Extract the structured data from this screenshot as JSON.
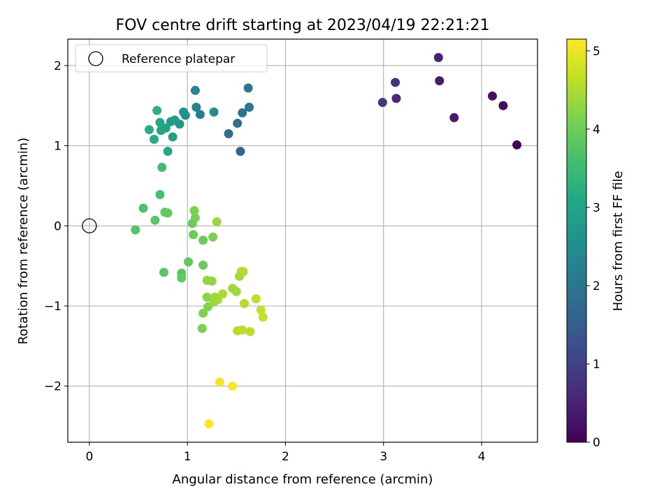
{
  "chart_data": {
    "type": "scatter",
    "title": "FOV centre drift starting at 2023/04/19 22:21:21",
    "xlabel": "Angular distance from reference (arcmin)",
    "ylabel": "Rotation from reference (arcmin)",
    "xlim": [
      -0.22,
      4.57
    ],
    "ylim": [
      -2.7,
      2.33
    ],
    "xticks": [
      0,
      1,
      2,
      3,
      4
    ],
    "xtick_labels": [
      "0",
      "1",
      "2",
      "3",
      "4"
    ],
    "yticks": [
      -2,
      -1,
      0,
      1,
      2
    ],
    "ytick_labels": [
      "−2",
      "−1",
      "0",
      "1",
      "2"
    ],
    "grid": true,
    "legend": {
      "placement": "top-left",
      "entries": [
        "Reference platepar"
      ]
    },
    "reference_point": {
      "x": 0,
      "y": 0
    },
    "colorbar": {
      "label": "Hours from first FF file",
      "range": [
        0,
        5.15
      ],
      "ticks": [
        0,
        1,
        2,
        3,
        4,
        5
      ],
      "tick_labels": [
        "0",
        "1",
        "2",
        "3",
        "4",
        "5"
      ],
      "colormap": "viridis"
    },
    "points": [
      {
        "x": 4.36,
        "y": 1.01,
        "c": 0.05
      },
      {
        "x": 4.22,
        "y": 1.5,
        "c": 0.15
      },
      {
        "x": 4.11,
        "y": 1.62,
        "c": 0.22
      },
      {
        "x": 3.72,
        "y": 1.35,
        "c": 0.35
      },
      {
        "x": 3.57,
        "y": 1.81,
        "c": 0.42
      },
      {
        "x": 3.56,
        "y": 2.1,
        "c": 0.5
      },
      {
        "x": 3.13,
        "y": 1.59,
        "c": 0.65
      },
      {
        "x": 3.12,
        "y": 1.79,
        "c": 0.75
      },
      {
        "x": 2.99,
        "y": 1.54,
        "c": 0.85
      },
      {
        "x": 1.54,
        "y": 0.93,
        "c": 1.7
      },
      {
        "x": 1.42,
        "y": 1.15,
        "c": 1.9
      },
      {
        "x": 1.51,
        "y": 1.28,
        "c": 1.85
      },
      {
        "x": 1.56,
        "y": 1.41,
        "c": 1.95
      },
      {
        "x": 1.62,
        "y": 1.72,
        "c": 2.0
      },
      {
        "x": 1.63,
        "y": 1.48,
        "c": 2.05
      },
      {
        "x": 1.13,
        "y": 1.39,
        "c": 2.25
      },
      {
        "x": 1.08,
        "y": 1.69,
        "c": 2.3
      },
      {
        "x": 1.09,
        "y": 1.48,
        "c": 2.35
      },
      {
        "x": 1.27,
        "y": 1.42,
        "c": 2.55
      },
      {
        "x": 0.98,
        "y": 1.38,
        "c": 2.6
      },
      {
        "x": 0.96,
        "y": 1.42,
        "c": 2.65
      },
      {
        "x": 0.92,
        "y": 1.27,
        "c": 2.75
      },
      {
        "x": 0.87,
        "y": 1.32,
        "c": 2.8
      },
      {
        "x": 0.83,
        "y": 1.3,
        "c": 2.85
      },
      {
        "x": 0.85,
        "y": 1.11,
        "c": 2.9
      },
      {
        "x": 0.78,
        "y": 1.22,
        "c": 2.95
      },
      {
        "x": 0.73,
        "y": 1.19,
        "c": 3.0
      },
      {
        "x": 0.72,
        "y": 1.29,
        "c": 3.05
      },
      {
        "x": 0.8,
        "y": 0.93,
        "c": 3.1
      },
      {
        "x": 0.66,
        "y": 1.08,
        "c": 3.15
      },
      {
        "x": 0.61,
        "y": 1.2,
        "c": 3.2
      },
      {
        "x": 0.69,
        "y": 1.44,
        "c": 3.25
      },
      {
        "x": 0.74,
        "y": 0.73,
        "c": 3.55
      },
      {
        "x": 0.72,
        "y": 0.39,
        "c": 3.6
      },
      {
        "x": 0.55,
        "y": 0.22,
        "c": 3.65
      },
      {
        "x": 0.47,
        "y": -0.05,
        "c": 3.75
      },
      {
        "x": 0.67,
        "y": 0.07,
        "c": 3.8
      },
      {
        "x": 0.77,
        "y": 0.17,
        "c": 3.85
      },
      {
        "x": 0.8,
        "y": 0.16,
        "c": 3.9
      },
      {
        "x": 0.76,
        "y": -0.58,
        "c": 3.8
      },
      {
        "x": 0.94,
        "y": -0.59,
        "c": 3.8
      },
      {
        "x": 0.94,
        "y": -0.65,
        "c": 3.85
      },
      {
        "x": 1.01,
        "y": -0.45,
        "c": 3.9
      },
      {
        "x": 1.05,
        "y": 0.03,
        "c": 3.95
      },
      {
        "x": 1.06,
        "y": -0.11,
        "c": 4.0
      },
      {
        "x": 1.08,
        "y": 0.1,
        "c": 4.05
      },
      {
        "x": 1.07,
        "y": 0.19,
        "c": 4.1
      },
      {
        "x": 1.16,
        "y": -0.18,
        "c": 3.95
      },
      {
        "x": 1.16,
        "y": -0.49,
        "c": 3.95
      },
      {
        "x": 1.26,
        "y": -0.14,
        "c": 4.1
      },
      {
        "x": 1.3,
        "y": 0.05,
        "c": 4.35
      },
      {
        "x": 1.16,
        "y": -1.09,
        "c": 4.15
      },
      {
        "x": 1.15,
        "y": -1.28,
        "c": 4.1
      },
      {
        "x": 1.21,
        "y": -1.01,
        "c": 4.2
      },
      {
        "x": 1.2,
        "y": -0.89,
        "c": 4.25
      },
      {
        "x": 1.2,
        "y": -0.68,
        "c": 4.3
      },
      {
        "x": 1.25,
        "y": -0.69,
        "c": 4.3
      },
      {
        "x": 1.27,
        "y": -0.95,
        "c": 4.35
      },
      {
        "x": 1.28,
        "y": -0.89,
        "c": 4.4
      },
      {
        "x": 1.31,
        "y": -0.92,
        "c": 4.45
      },
      {
        "x": 1.36,
        "y": -0.85,
        "c": 4.5
      },
      {
        "x": 1.46,
        "y": -0.78,
        "c": 4.4
      },
      {
        "x": 1.5,
        "y": -0.82,
        "c": 4.4
      },
      {
        "x": 1.53,
        "y": -0.63,
        "c": 4.45
      },
      {
        "x": 1.55,
        "y": -0.57,
        "c": 4.5
      },
      {
        "x": 1.57,
        "y": -0.57,
        "c": 4.55
      },
      {
        "x": 1.58,
        "y": -0.97,
        "c": 4.55
      },
      {
        "x": 1.51,
        "y": -1.31,
        "c": 4.55
      },
      {
        "x": 1.56,
        "y": -1.3,
        "c": 4.6
      },
      {
        "x": 1.64,
        "y": -1.32,
        "c": 4.6
      },
      {
        "x": 1.7,
        "y": -0.91,
        "c": 4.65
      },
      {
        "x": 1.75,
        "y": -1.05,
        "c": 4.7
      },
      {
        "x": 1.77,
        "y": -1.14,
        "c": 4.7
      },
      {
        "x": 1.33,
        "y": -1.95,
        "c": 5.05
      },
      {
        "x": 1.46,
        "y": -2.0,
        "c": 5.1
      },
      {
        "x": 1.22,
        "y": -2.47,
        "c": 5.15
      }
    ]
  }
}
